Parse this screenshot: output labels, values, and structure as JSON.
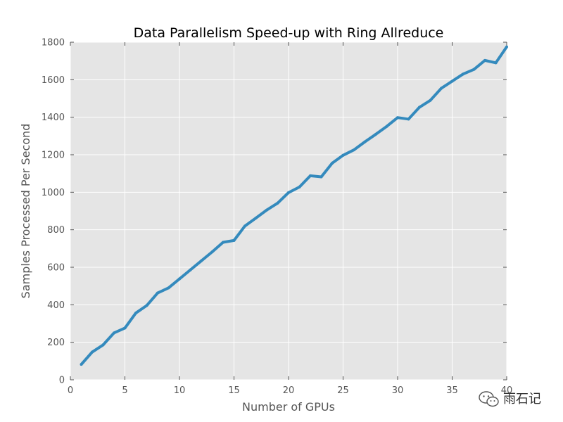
{
  "chart_data": {
    "type": "line",
    "title": "Data Parallelism Speed-up with Ring Allreduce",
    "xlabel": "Number of GPUs",
    "ylabel": "Samples Processed Per Second",
    "xlim": [
      0,
      40
    ],
    "ylim": [
      0,
      1800
    ],
    "xticks": [
      0,
      5,
      10,
      15,
      20,
      25,
      30,
      35,
      40
    ],
    "yticks": [
      0,
      200,
      400,
      600,
      800,
      1000,
      1200,
      1400,
      1600,
      1800
    ],
    "grid": true,
    "line_color": "#348ABD",
    "background_color": "#E5E5E5",
    "series": [
      {
        "x": [
          1,
          2,
          3,
          4,
          5,
          6,
          7,
          8,
          9,
          10,
          11,
          12,
          13,
          14,
          15,
          16,
          17,
          18,
          19,
          20,
          21,
          22,
          23,
          24,
          25,
          26,
          27,
          28,
          29,
          30,
          31,
          32,
          33,
          34,
          35,
          36,
          37,
          38,
          39,
          40
        ],
        "values": [
          82,
          148,
          186,
          250,
          276,
          356,
          396,
          463,
          490,
          538,
          586,
          634,
          682,
          733,
          743,
          820,
          862,
          905,
          942,
          998,
          1028,
          1088,
          1082,
          1155,
          1197,
          1226,
          1269,
          1309,
          1351,
          1398,
          1390,
          1453,
          1490,
          1554,
          1592,
          1630,
          1655,
          1703,
          1690,
          1775
        ]
      }
    ]
  },
  "watermark": {
    "icon": "wechat-icon",
    "text": "雨石记"
  }
}
